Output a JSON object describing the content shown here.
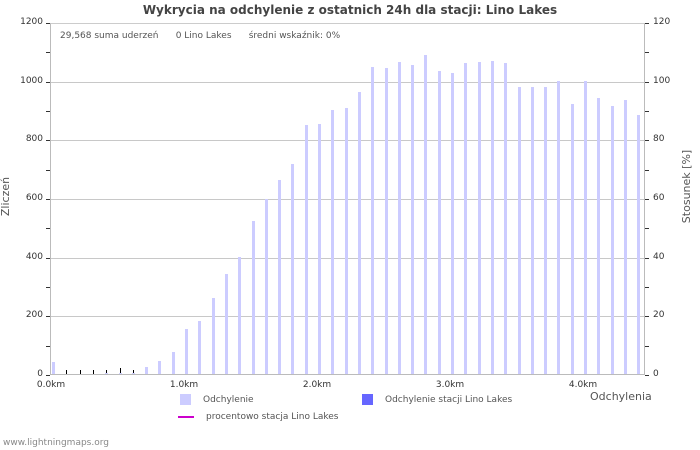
{
  "chart_data": {
    "type": "bar",
    "title": "Wykrycia na odchylenie z ostatnich 24h dla stacji: Lino Lakes",
    "xlabel": "Odchylenia",
    "ylabel": "Zliczeń",
    "ylabel_right": "Stosunek [%]",
    "ylim": [
      0,
      1200
    ],
    "ylim_right": [
      0,
      120
    ],
    "grid": true,
    "legend_position": "bottom",
    "x_ticks": [
      "0.0km",
      "1.0km",
      "2.0km",
      "3.0km",
      "4.0km"
    ],
    "y_ticks_left": [
      "0",
      "200",
      "400",
      "600",
      "800",
      "1000",
      "1200"
    ],
    "y_ticks_right": [
      "0",
      "20",
      "40",
      "60",
      "80",
      "100",
      "120"
    ],
    "categories": [
      "0.0",
      "0.1",
      "0.2",
      "0.3",
      "0.4",
      "0.5",
      "0.6",
      "0.7",
      "0.8",
      "0.9",
      "1.0",
      "1.1",
      "1.2",
      "1.3",
      "1.4",
      "1.5",
      "1.6",
      "1.7",
      "1.8",
      "1.9",
      "2.0",
      "2.1",
      "2.2",
      "2.3",
      "2.4",
      "2.5",
      "2.6",
      "2.7",
      "2.8",
      "2.9",
      "3.0",
      "3.1",
      "3.2",
      "3.3",
      "3.4",
      "3.5",
      "3.6",
      "3.7",
      "3.8",
      "3.9",
      "4.0",
      "4.1",
      "4.2",
      "4.3",
      "4.4"
    ],
    "series": [
      {
        "name": "Odchylenie",
        "color": "#ccccff",
        "values": [
          40,
          0,
          0,
          0,
          2,
          3,
          4,
          25,
          44,
          75,
          153,
          180,
          258,
          340,
          400,
          520,
          595,
          660,
          715,
          848,
          852,
          900,
          907,
          960,
          1048,
          1043,
          1063,
          1053,
          1088,
          1032,
          1027,
          1060,
          1063,
          1068,
          1060,
          980,
          980,
          980,
          998,
          920,
          998,
          940,
          915,
          935,
          883
        ]
      },
      {
        "name": "Odchylenie stacji Lino Lakes",
        "color": "#6666ff",
        "values": [
          0,
          0,
          0,
          0,
          0,
          0,
          0,
          0,
          0,
          0,
          0,
          0,
          0,
          0,
          0,
          0,
          0,
          0,
          0,
          0,
          0,
          0,
          0,
          0,
          0,
          0,
          0,
          0,
          0,
          0,
          0,
          0,
          0,
          0,
          0,
          0,
          0,
          0,
          0,
          0,
          0,
          0,
          0,
          0,
          0
        ]
      },
      {
        "name": "procentowo stacja Lino Lakes",
        "color": "#cc00cc",
        "type": "line",
        "values": []
      }
    ]
  },
  "stats": {
    "total": "29,568 suma uderzeń",
    "station": "0 Lino Lakes",
    "avg": "średni wskaźnik: 0%"
  },
  "legend": {
    "item1": "Odchylenie",
    "item2": "Odchylenie stacji Lino Lakes",
    "item3": "procentowo stacja Lino Lakes"
  },
  "footer": "www.lightningmaps.org"
}
